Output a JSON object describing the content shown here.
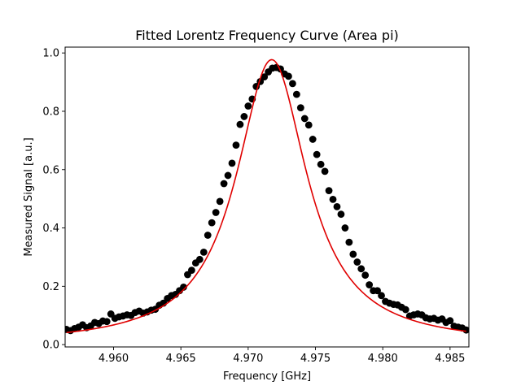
{
  "chart_data": {
    "type": "scatter",
    "title": "Fitted Lorentz Frequency Curve (Area pi)",
    "xlabel": "Frequency [GHz]",
    "ylabel": "Measured Signal [a.u.]",
    "xlim": [
      4.9564,
      4.9864
    ],
    "ylim": [
      -0.008,
      1.02
    ],
    "xticks": [
      {
        "value": 4.96,
        "label": "4.960"
      },
      {
        "value": 4.965,
        "label": "4.965"
      },
      {
        "value": 4.97,
        "label": "4.970"
      },
      {
        "value": 4.975,
        "label": "4.975"
      },
      {
        "value": 4.98,
        "label": "4.980"
      },
      {
        "value": 4.985,
        "label": "4.985"
      }
    ],
    "yticks": [
      {
        "value": 0.0,
        "label": "0.0"
      },
      {
        "value": 0.2,
        "label": "0.2"
      },
      {
        "value": 0.4,
        "label": "0.4"
      },
      {
        "value": 0.6,
        "label": "0.6"
      },
      {
        "value": 0.8,
        "label": "0.8"
      },
      {
        "value": 1.0,
        "label": "1.0"
      }
    ],
    "grid": false,
    "series": [
      {
        "kind": "scatter",
        "color": "#000000",
        "points": [
          [
            4.9565,
            0.052
          ],
          [
            4.9568,
            0.048
          ],
          [
            4.9571,
            0.055
          ],
          [
            4.9574,
            0.06
          ],
          [
            4.9577,
            0.068
          ],
          [
            4.958,
            0.058
          ],
          [
            4.9583,
            0.064
          ],
          [
            4.9586,
            0.076
          ],
          [
            4.9589,
            0.072
          ],
          [
            4.9592,
            0.081
          ],
          [
            4.9595,
            0.079
          ],
          [
            4.9598,
            0.105
          ],
          [
            4.9601,
            0.09
          ],
          [
            4.9604,
            0.095
          ],
          [
            4.9607,
            0.098
          ],
          [
            4.961,
            0.102
          ],
          [
            4.9613,
            0.1
          ],
          [
            4.9616,
            0.11
          ],
          [
            4.9619,
            0.115
          ],
          [
            4.9622,
            0.108
          ],
          [
            4.9625,
            0.112
          ],
          [
            4.9628,
            0.118
          ],
          [
            4.9631,
            0.121
          ],
          [
            4.9634,
            0.135
          ],
          [
            4.9637,
            0.142
          ],
          [
            4.964,
            0.158
          ],
          [
            4.9643,
            0.168
          ],
          [
            4.9646,
            0.172
          ],
          [
            4.9649,
            0.185
          ],
          [
            4.9652,
            0.197
          ],
          [
            4.9655,
            0.24
          ],
          [
            4.9658,
            0.255
          ],
          [
            4.9661,
            0.28
          ],
          [
            4.9664,
            0.292
          ],
          [
            4.9667,
            0.317
          ],
          [
            4.967,
            0.375
          ],
          [
            4.9673,
            0.418
          ],
          [
            4.9676,
            0.453
          ],
          [
            4.9679,
            0.491
          ],
          [
            4.9682,
            0.552
          ],
          [
            4.9685,
            0.58
          ],
          [
            4.9688,
            0.622
          ],
          [
            4.9691,
            0.684
          ],
          [
            4.9694,
            0.755
          ],
          [
            4.9697,
            0.782
          ],
          [
            4.97,
            0.818
          ],
          [
            4.9703,
            0.842
          ],
          [
            4.9706,
            0.885
          ],
          [
            4.9709,
            0.902
          ],
          [
            4.9712,
            0.918
          ],
          [
            4.9715,
            0.935
          ],
          [
            4.9718,
            0.948
          ],
          [
            4.9721,
            0.95
          ],
          [
            4.9724,
            0.945
          ],
          [
            4.9727,
            0.928
          ],
          [
            4.973,
            0.92
          ],
          [
            4.9733,
            0.895
          ],
          [
            4.9736,
            0.858
          ],
          [
            4.9739,
            0.812
          ],
          [
            4.9742,
            0.775
          ],
          [
            4.9745,
            0.753
          ],
          [
            4.9748,
            0.704
          ],
          [
            4.9751,
            0.652
          ],
          [
            4.9754,
            0.618
          ],
          [
            4.9757,
            0.594
          ],
          [
            4.976,
            0.528
          ],
          [
            4.9763,
            0.498
          ],
          [
            4.9766,
            0.473
          ],
          [
            4.9769,
            0.447
          ],
          [
            4.9772,
            0.4
          ],
          [
            4.9775,
            0.351
          ],
          [
            4.9778,
            0.31
          ],
          [
            4.9781,
            0.283
          ],
          [
            4.9784,
            0.26
          ],
          [
            4.9787,
            0.238
          ],
          [
            4.979,
            0.205
          ],
          [
            4.9793,
            0.185
          ],
          [
            4.9796,
            0.185
          ],
          [
            4.9799,
            0.168
          ],
          [
            4.9802,
            0.148
          ],
          [
            4.9805,
            0.142
          ],
          [
            4.9808,
            0.138
          ],
          [
            4.9811,
            0.136
          ],
          [
            4.9814,
            0.128
          ],
          [
            4.9817,
            0.12
          ],
          [
            4.982,
            0.098
          ],
          [
            4.9823,
            0.102
          ],
          [
            4.9826,
            0.105
          ],
          [
            4.9829,
            0.102
          ],
          [
            4.9832,
            0.092
          ],
          [
            4.9835,
            0.088
          ],
          [
            4.9838,
            0.09
          ],
          [
            4.9841,
            0.084
          ],
          [
            4.9844,
            0.088
          ],
          [
            4.9847,
            0.076
          ],
          [
            4.985,
            0.082
          ],
          [
            4.9853,
            0.063
          ],
          [
            4.9856,
            0.06
          ],
          [
            4.9859,
            0.057
          ],
          [
            4.9862,
            0.05
          ]
        ]
      },
      {
        "kind": "line",
        "color": "#e00000",
        "model": "lorentzian",
        "x0": 4.97175,
        "gamma": 0.0032,
        "amplitude": 0.977,
        "x_range": [
          4.9565,
          4.9862
        ]
      }
    ]
  }
}
